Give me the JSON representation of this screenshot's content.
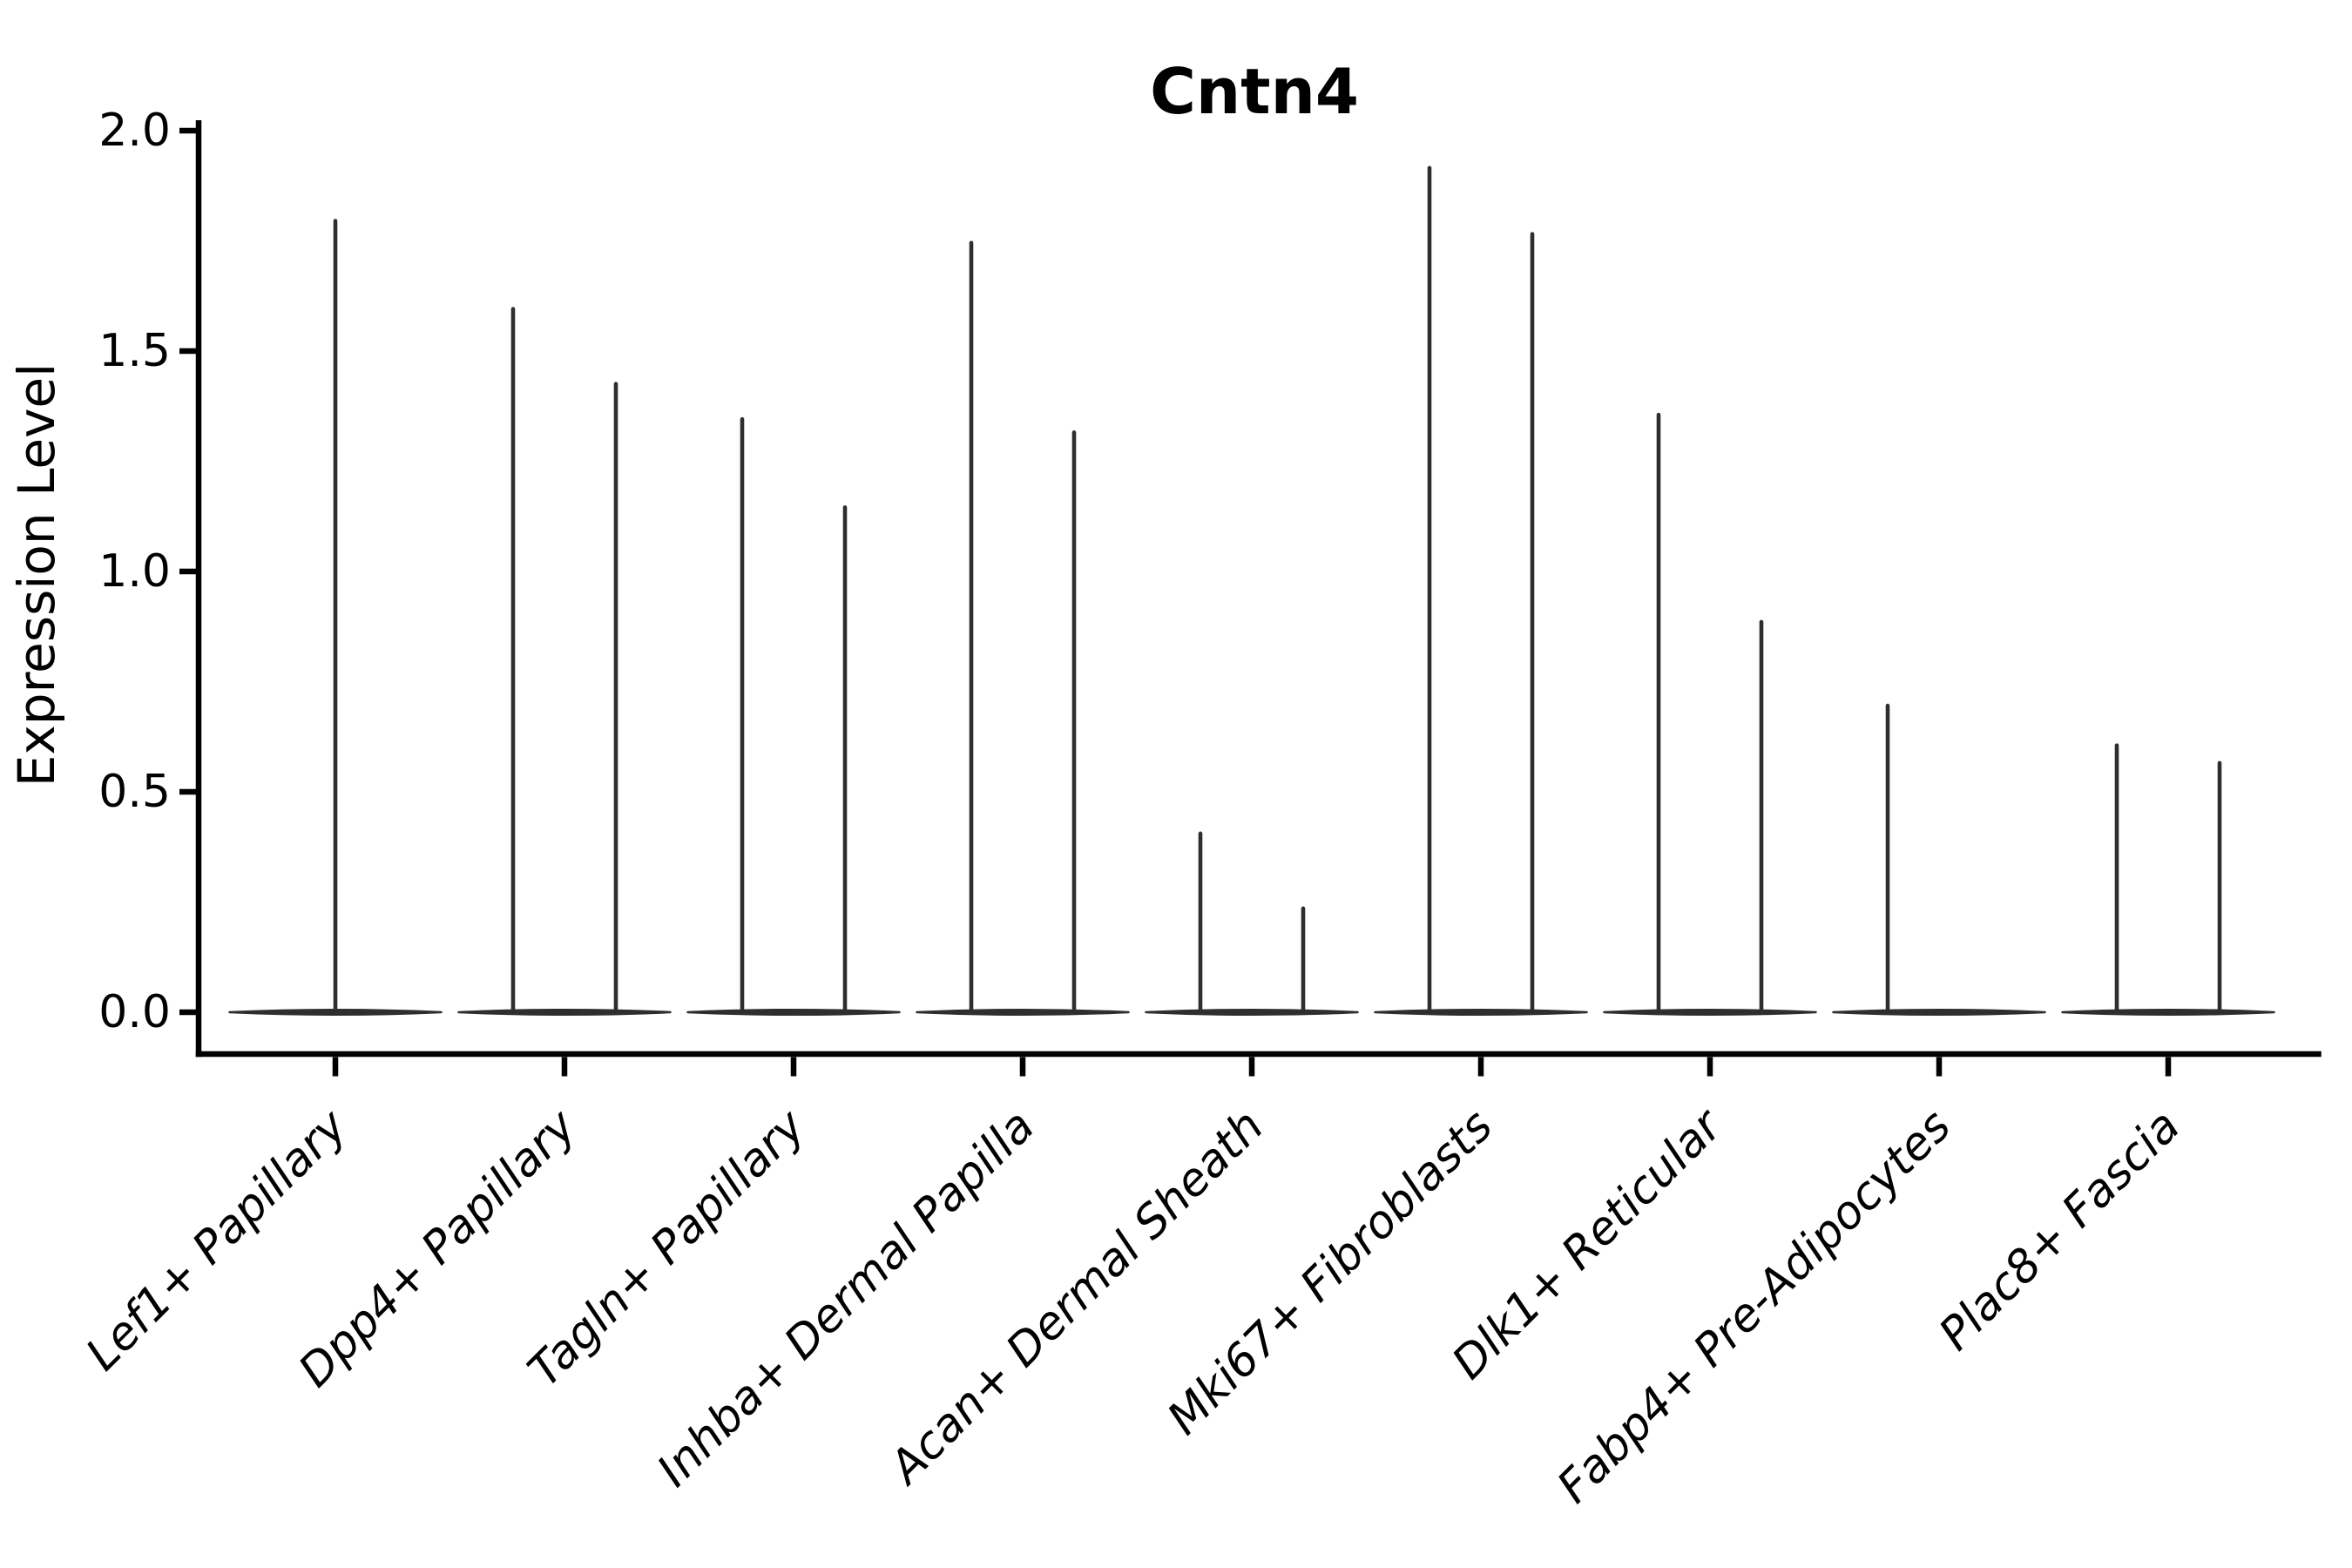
{
  "chart_data": {
    "type": "violin",
    "title": "Cntn4",
    "xlabel": "",
    "ylabel": "Expression Level",
    "ylim": [
      -0.09,
      2.02
    ],
    "grid": false,
    "legend": "none",
    "yticks": [
      {
        "value": 0.0,
        "label": "0.0"
      },
      {
        "value": 0.5,
        "label": "0.5"
      },
      {
        "value": 1.0,
        "label": "1.0"
      },
      {
        "value": 1.5,
        "label": "1.5"
      },
      {
        "value": 2.0,
        "label": "2.0"
      }
    ],
    "categories": [
      {
        "label": "Lef1+ Papillary",
        "spikes": [
          {
            "pos": "center",
            "value": 1.8
          }
        ]
      },
      {
        "label": "Dpp4+ Papillary",
        "spikes": [
          {
            "pos": "left",
            "value": 1.6
          },
          {
            "pos": "right",
            "value": 1.43
          }
        ]
      },
      {
        "label": "Tagln+ Papillary",
        "spikes": [
          {
            "pos": "left",
            "value": 1.35
          },
          {
            "pos": "right",
            "value": 1.15
          }
        ]
      },
      {
        "label": "Inhba+ Dermal Papilla",
        "spikes": [
          {
            "pos": "left",
            "value": 1.75
          },
          {
            "pos": "right",
            "value": 1.32
          }
        ]
      },
      {
        "label": "Acan+ Dermal Sheath",
        "spikes": [
          {
            "pos": "left",
            "value": 0.41
          },
          {
            "pos": "right",
            "value": 0.24
          }
        ]
      },
      {
        "label": "Mki67+ Fibroblasts",
        "spikes": [
          {
            "pos": "left",
            "value": 1.92
          },
          {
            "pos": "right",
            "value": 1.77
          }
        ]
      },
      {
        "label": "Dlk1+ Reticular",
        "spikes": [
          {
            "pos": "left",
            "value": 1.36
          },
          {
            "pos": "right",
            "value": 0.89
          }
        ]
      },
      {
        "label": "Fabp4+ Pre-Adipocytes",
        "spikes": [
          {
            "pos": "left",
            "value": 0.7
          }
        ]
      },
      {
        "label": "Plac8+ Fascia",
        "spikes": [
          {
            "pos": "left",
            "value": 0.61
          },
          {
            "pos": "right",
            "value": 0.57
          }
        ]
      }
    ],
    "violin_color": "#2e2e2e",
    "axis_color": "#000000"
  }
}
